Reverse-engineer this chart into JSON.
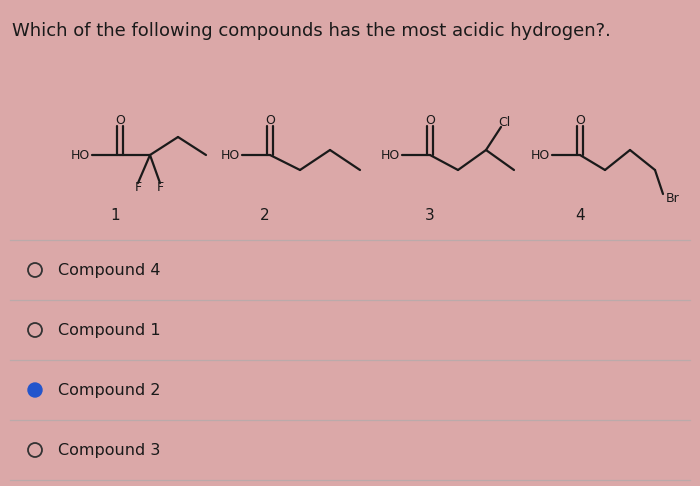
{
  "title": "Which of the following compounds has the most acidic hydrogen?.",
  "title_fontsize": 13,
  "background_color": "#dba8a8",
  "line_color": "#1a1a1a",
  "options": [
    "Compound 4",
    "Compound 1",
    "Compound 2",
    "Compound 3"
  ],
  "selected_index": 2,
  "selected_color": "#2255cc",
  "unselected_color": "#333333",
  "divider_color": "#bbaaaa"
}
